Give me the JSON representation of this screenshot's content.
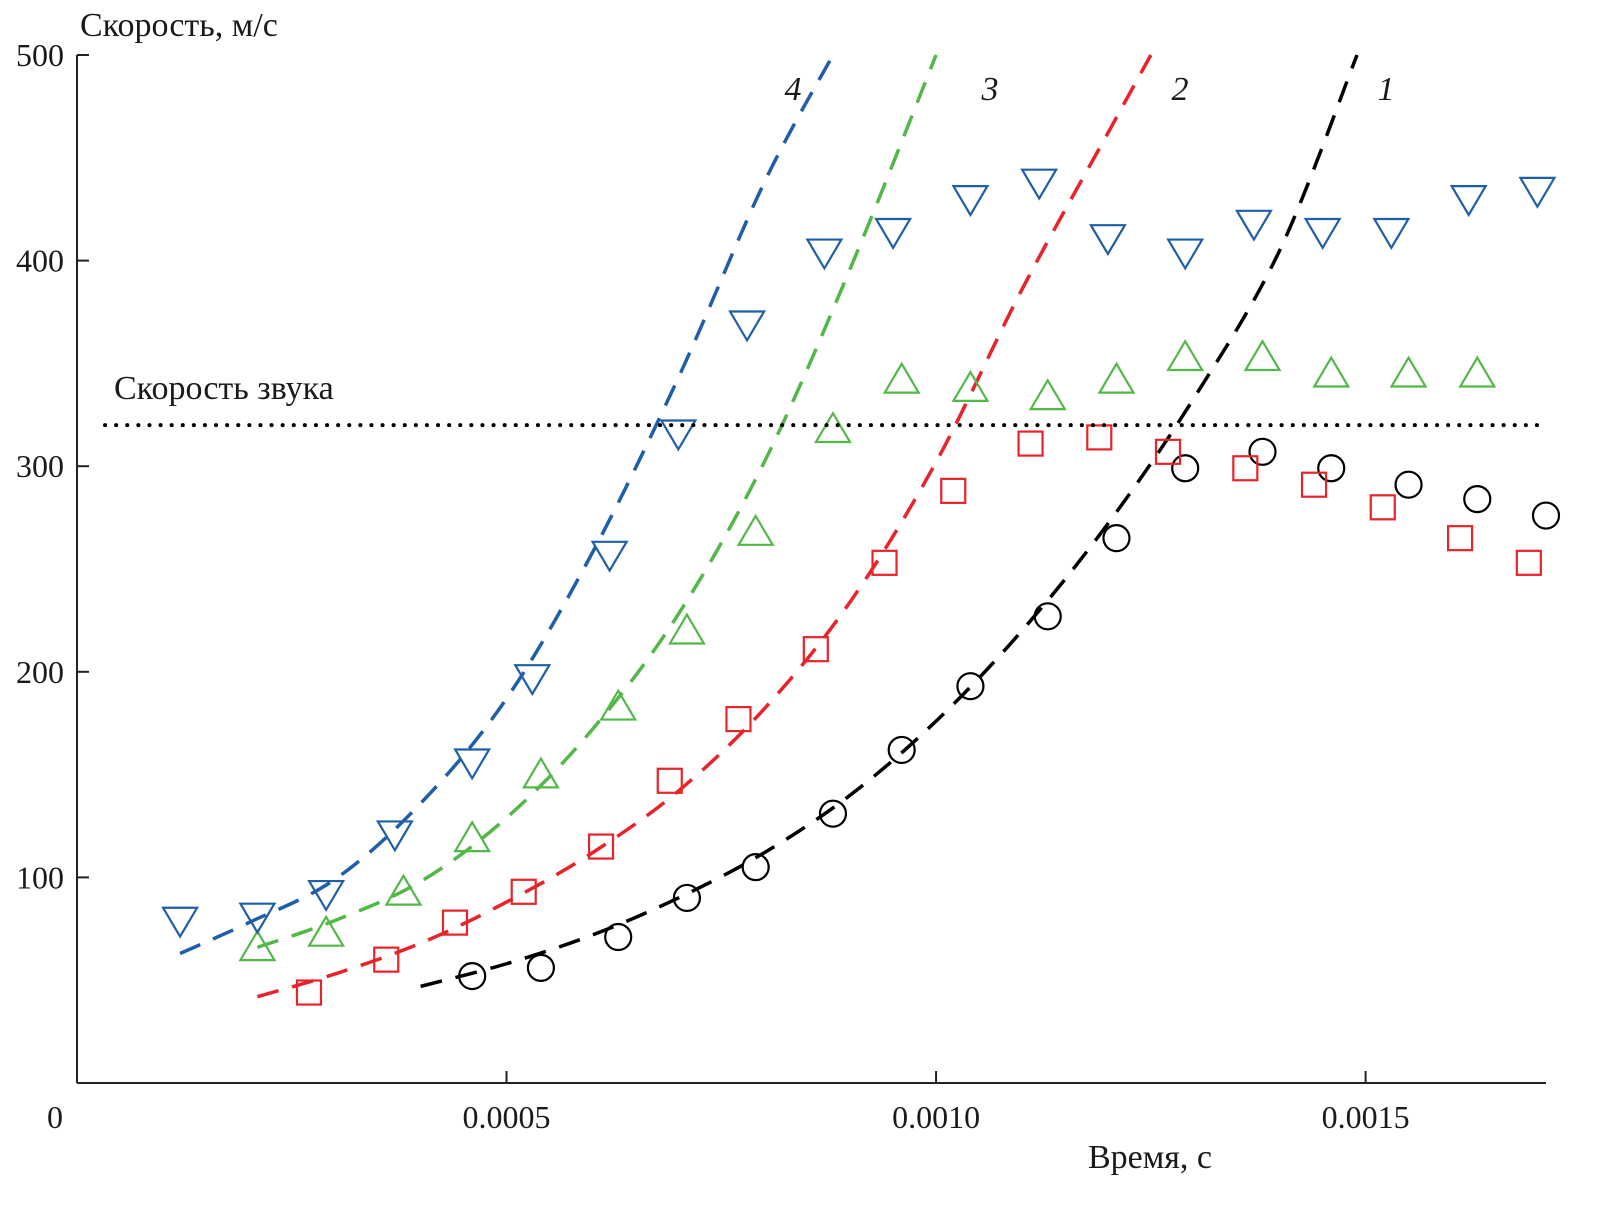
{
  "chart_data": {
    "type": "scatter",
    "title": "",
    "ylabel": "Скорость, м/с",
    "xlabel": "Время, с",
    "xlim": [
      0,
      0.00171
    ],
    "ylim": [
      0,
      500
    ],
    "x_ticks": [
      {
        "value": 0,
        "label": "0"
      },
      {
        "value": 0.0005,
        "label": "0.0005"
      },
      {
        "value": 0.001,
        "label": "0.0010"
      },
      {
        "value": 0.0015,
        "label": "0.0015"
      }
    ],
    "y_ticks": [
      {
        "value": 100,
        "label": "100"
      },
      {
        "value": 200,
        "label": "200"
      },
      {
        "value": 300,
        "label": "300"
      },
      {
        "value": 400,
        "label": "400"
      },
      {
        "value": 500,
        "label": "500"
      }
    ],
    "grid": false,
    "reference_line": {
      "y": 320,
      "label": "Скорость звука",
      "style": "dotted",
      "color": "#000000"
    },
    "series": [
      {
        "label": "1",
        "marker": "circle",
        "color": "#000000",
        "x": [
          0.00046,
          0.00054,
          0.00063,
          0.00071,
          0.00079,
          0.00088,
          0.00096,
          0.00104,
          0.00113,
          0.00121,
          0.00129,
          0.00138,
          0.00146,
          0.00155,
          0.00163,
          0.00171
        ],
        "y": [
          52,
          56,
          71,
          90,
          105,
          131,
          162,
          193,
          227,
          265,
          299,
          307,
          299,
          291,
          284,
          276
        ],
        "fit": {
          "x": [
            0.0004,
            0.0005,
            0.0006,
            0.0007,
            0.0008,
            0.0009,
            0.001,
            0.0011,
            0.0012,
            0.0013,
            0.0014,
            0.00149
          ],
          "y": [
            47,
            58,
            72,
            90,
            112,
            140,
            176,
            220,
            272,
            333,
            405,
            500
          ]
        }
      },
      {
        "label": "2",
        "marker": "square",
        "color": "#e8232a",
        "x": [
          0.00027,
          0.00036,
          0.00044,
          0.00052,
          0.00061,
          0.00069,
          0.00077,
          0.00086,
          0.00094,
          0.00102,
          0.00111,
          0.00119,
          0.00127,
          0.00136,
          0.00144,
          0.00152,
          0.00161,
          0.00169
        ],
        "y": [
          44,
          60,
          78,
          93,
          115,
          147,
          177,
          211,
          253,
          288,
          311,
          314,
          307,
          299,
          291,
          280,
          265,
          253
        ],
        "fit": {
          "x": [
            0.00021,
            0.0003,
            0.0004,
            0.0005,
            0.0006,
            0.0007,
            0.0008,
            0.0009,
            0.001,
            0.0011,
            0.0012,
            0.00125
          ],
          "y": [
            42,
            53,
            68,
            88,
            112,
            142,
            182,
            234,
            302,
            386,
            462,
            500
          ]
        }
      },
      {
        "label": "3",
        "marker": "triangle-up",
        "color": "#52b847",
        "x": [
          0.00021,
          0.00029,
          0.00038,
          0.00046,
          0.00054,
          0.00063,
          0.00071,
          0.00079,
          0.00088,
          0.00096,
          0.00104,
          0.00113,
          0.00121,
          0.00129,
          0.00138,
          0.00146,
          0.00155,
          0.00163
        ],
        "y": [
          66,
          73,
          93,
          119,
          150,
          183,
          220,
          268,
          318,
          342,
          338,
          334,
          342,
          353,
          353,
          345,
          345,
          345
        ],
        "fit": {
          "x": [
            0.00021,
            0.0003,
            0.0004,
            0.0005,
            0.0006,
            0.0007,
            0.0008,
            0.0009,
            0.001
          ],
          "y": [
            66,
            79,
            98,
            129,
            172,
            228,
            302,
            396,
            500
          ]
        }
      },
      {
        "label": "4",
        "marker": "triangle-down",
        "color": "#1f5ea8",
        "x": [
          0.00012,
          0.00021,
          0.00029,
          0.00037,
          0.00046,
          0.00053,
          0.00062,
          0.0007,
          0.00078,
          0.00087,
          0.00095,
          0.00104,
          0.00112,
          0.0012,
          0.00129,
          0.00137,
          0.00145,
          0.00153,
          0.00162,
          0.0017
        ],
        "y": [
          79,
          81,
          92,
          121,
          156,
          197,
          257,
          316,
          369,
          404,
          414,
          430,
          438,
          411,
          404,
          418,
          414,
          414,
          430,
          434
        ],
        "fit": {
          "x": [
            0.00012,
            0.0002,
            0.0003,
            0.0004,
            0.0005,
            0.0006,
            0.0007,
            0.0008,
            0.00088
          ],
          "y": [
            63,
            78,
            99,
            136,
            187,
            258,
            343,
            438,
            500
          ]
        }
      }
    ]
  }
}
